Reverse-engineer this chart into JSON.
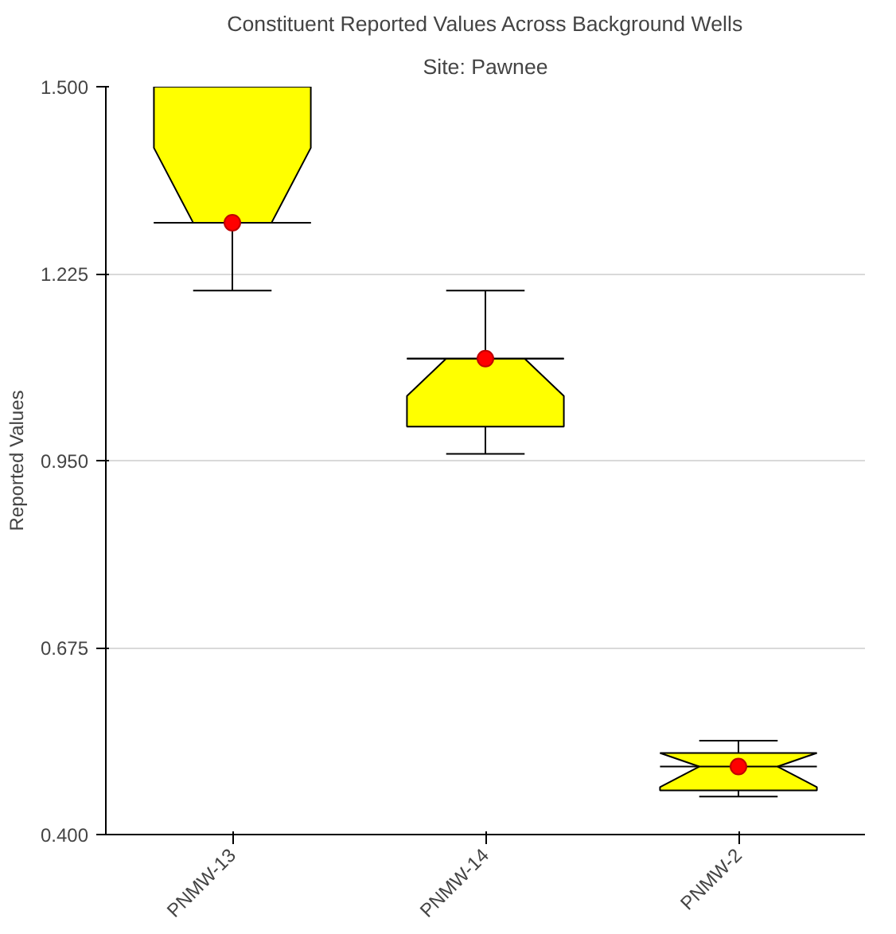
{
  "chart_data": {
    "type": "box",
    "title": "Constituent Reported Values Across Background Wells",
    "subtitle": "Site: Pawnee",
    "ylabel": "Reported Values",
    "categories": [
      "PNMW-13",
      "PNMW-14",
      "PNMW-2"
    ],
    "color": "#ffff00",
    "boxes": [
      {
        "low": 1.2,
        "q1": 1.3,
        "median": 1.3,
        "q3": 1.5,
        "high": 1.5,
        "mean": 1.3
      },
      {
        "low": 0.96,
        "q1": 1.0,
        "median": 1.1,
        "q3": 1.1,
        "high": 1.2,
        "mean": 1.1
      },
      {
        "low": 0.456,
        "q1": 0.465,
        "median": 0.5,
        "q3": 0.52,
        "high": 0.538,
        "mean": 0.5
      }
    ],
    "ylim": [
      0.4,
      1.5
    ],
    "yticks": [
      {
        "value": 0.4,
        "label": "0.400"
      },
      {
        "value": 0.675,
        "label": "0.675"
      },
      {
        "value": 0.95,
        "label": "0.950"
      },
      {
        "value": 1.225,
        "label": "1.225"
      },
      {
        "value": 1.5,
        "label": "1.500"
      }
    ],
    "grid": "y"
  }
}
